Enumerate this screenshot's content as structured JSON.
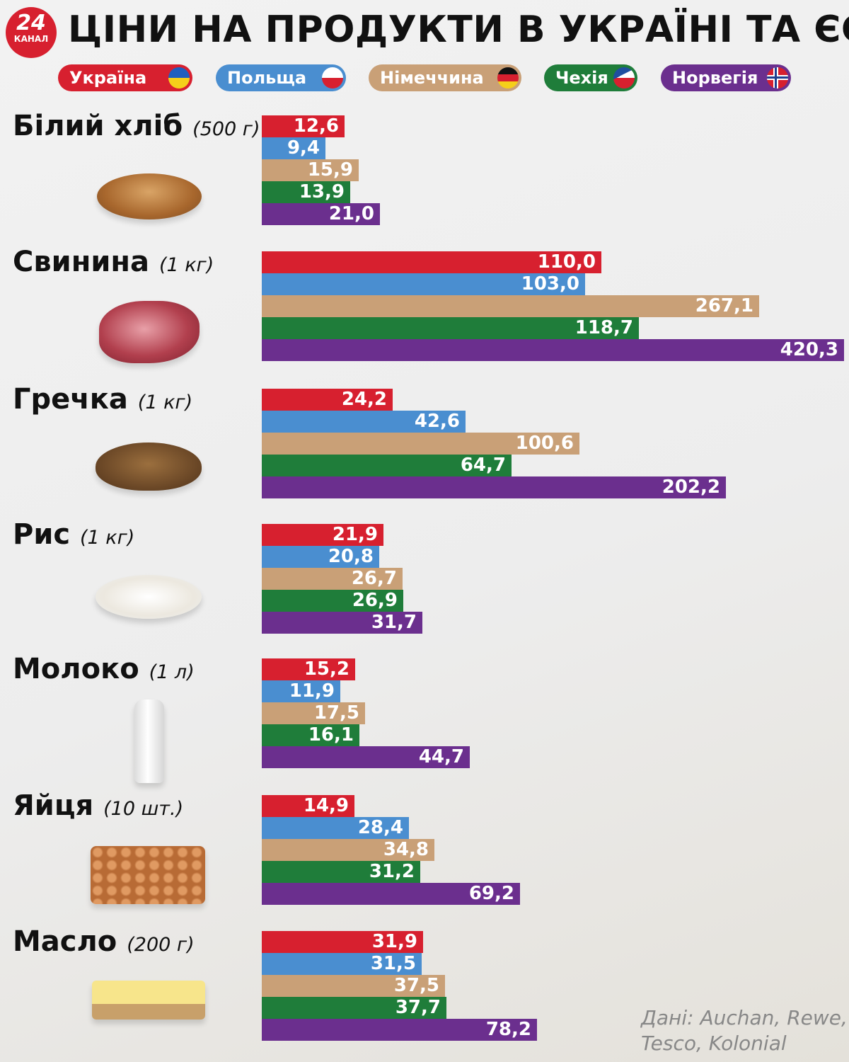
{
  "logo": {
    "number": "24",
    "text": "КАНАЛ"
  },
  "title": "ЦІНИ НА ПРОДУКТИ В УКРАЇНІ ТА ЄС",
  "source": [
    "Дані: Auchan, Rewe,",
    "Tesco, Kolonial"
  ],
  "chart_data": {
    "type": "bar",
    "orientation": "horizontal",
    "title": "ЦІНИ НА ПРОДУКТИ В УКРАЇНІ ТА ЄС",
    "legend_placement": "top",
    "series": [
      {
        "name": "Україна",
        "color": "#d7202f",
        "flag": "ukraine-flag",
        "values": [
          12.6,
          110.0,
          24.2,
          21.9,
          15.2,
          14.9,
          31.9
        ],
        "labels": [
          "12,6",
          "110,0",
          "24,2",
          "21,9",
          "15,2",
          "14,9",
          "31,9"
        ]
      },
      {
        "name": "Польща",
        "color": "#4a8ed0",
        "flag": "poland-flag",
        "values": [
          9.4,
          103.0,
          42.6,
          20.8,
          11.9,
          28.4,
          31.5
        ],
        "labels": [
          "9,4",
          "103,0",
          "42,6",
          "20,8",
          "11,9",
          "28,4",
          "31,5"
        ]
      },
      {
        "name": "Німеччина",
        "color": "#c9a077",
        "flag": "germany-flag",
        "values": [
          15.9,
          267.1,
          100.6,
          26.7,
          17.5,
          34.8,
          37.5
        ],
        "labels": [
          "15,9",
          "267,1",
          "100,6",
          "26,7",
          "17,5",
          "34,8",
          "37,5"
        ]
      },
      {
        "name": "Чехія",
        "color": "#1f7d3a",
        "flag": "czech-flag",
        "values": [
          13.9,
          118.7,
          64.7,
          26.9,
          16.1,
          31.2,
          37.7
        ],
        "labels": [
          "13,9",
          "118,7",
          "64,7",
          "26,9",
          "16,1",
          "31,2",
          "37,7"
        ]
      },
      {
        "name": "Норвегія",
        "color": "#6b2f8e",
        "flag": "norway-flag",
        "values": [
          21.0,
          420.3,
          202.2,
          31.7,
          44.7,
          69.2,
          78.2
        ],
        "labels": [
          "21,0",
          "420,3",
          "202,2",
          "31,7",
          "44,7",
          "69,2",
          "78,2"
        ]
      }
    ],
    "categories": [
      {
        "name": "Білий хліб",
        "unit": "(500 г)",
        "image": "bread"
      },
      {
        "name": "Свинина",
        "unit": "(1 кг)",
        "image": "pork"
      },
      {
        "name": "Гречка",
        "unit": "(1 кг)",
        "image": "buckwheat"
      },
      {
        "name": "Рис",
        "unit": "(1 кг)",
        "image": "rice"
      },
      {
        "name": "Молоко",
        "unit": "(1 л)",
        "image": "milk"
      },
      {
        "name": "Яйця",
        "unit": "(10 шт.)",
        "image": "eggs"
      },
      {
        "name": "Масло",
        "unit": "(200 г)",
        "image": "butter"
      }
    ]
  }
}
